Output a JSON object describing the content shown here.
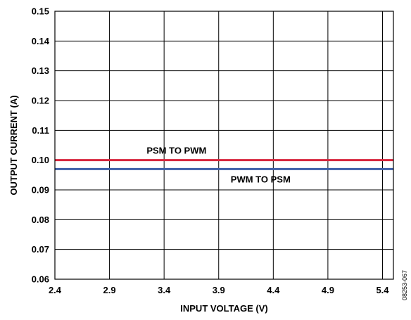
{
  "chart_data": {
    "type": "line",
    "title": "",
    "xlabel": "INPUT VOLTAGE (V)",
    "ylabel": "OUTPUT CURRENT (A)",
    "xlim": [
      2.4,
      5.5
    ],
    "ylim": [
      0.06,
      0.15
    ],
    "x_ticks": [
      2.4,
      2.9,
      3.4,
      3.9,
      4.4,
      4.9,
      5.4
    ],
    "x_tick_labels": [
      "2.4",
      "2.9",
      "3.4",
      "3.9",
      "4.4",
      "4.9",
      "5.4"
    ],
    "y_ticks": [
      0.06,
      0.07,
      0.08,
      0.09,
      0.1,
      0.11,
      0.12,
      0.13,
      0.14,
      0.15
    ],
    "y_tick_labels": [
      "0.06",
      "0.07",
      "0.08",
      "0.09",
      "0.10",
      "0.11",
      "0.12",
      "0.13",
      "0.14",
      "0.15"
    ],
    "grid": true,
    "series": [
      {
        "name": "PSM TO PWM",
        "color": "#d7263d",
        "x": [
          2.4,
          5.5
        ],
        "values": [
          0.1,
          0.1
        ]
      },
      {
        "name": "PWM TO PSM",
        "color": "#3d5fa8",
        "x": [
          2.4,
          5.5
        ],
        "values": [
          0.097,
          0.097
        ]
      }
    ],
    "figure_id": "08253-067"
  }
}
